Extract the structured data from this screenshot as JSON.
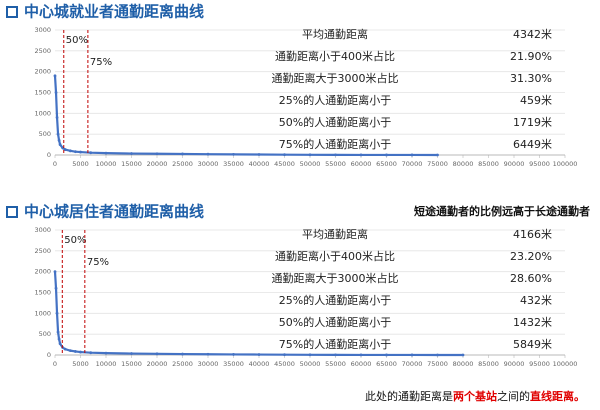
{
  "chart_data": [
    {
      "type": "line",
      "title": "中心城就业者通勤距离曲线",
      "color": "#4472c4",
      "marker_color": "#c00000",
      "x": [
        0,
        200,
        400,
        600,
        800,
        1000,
        1500,
        2000,
        3000,
        4000,
        5000,
        7000,
        10000,
        15000,
        20000,
        25000,
        30000,
        35000,
        40000,
        45000,
        50000,
        55000,
        60000,
        65000,
        70000,
        75000
      ],
      "values": [
        1900,
        1500,
        900,
        500,
        350,
        250,
        170,
        130,
        100,
        80,
        70,
        55,
        45,
        35,
        30,
        25,
        20,
        15,
        12,
        8,
        5,
        3,
        2,
        1,
        1,
        0
      ],
      "xlim": [
        0,
        100000
      ],
      "xticks": [
        0,
        5000,
        10000,
        15000,
        20000,
        25000,
        30000,
        35000,
        40000,
        45000,
        50000,
        55000,
        60000,
        65000,
        70000,
        75000,
        80000,
        85000,
        90000,
        95000,
        100000
      ],
      "ylim": [
        0,
        3000
      ],
      "yticks": [
        0,
        500,
        1000,
        1500,
        2000,
        2500,
        3000
      ],
      "grid": true,
      "markers": [
        {
          "label": "50%",
          "x": 1719
        },
        {
          "label": "75%",
          "x": 6449
        }
      ],
      "stats": [
        [
          "平均通勤距离",
          "4342米"
        ],
        [
          "通勤距离小于400米占比",
          "21.90%"
        ],
        [
          "通勤距离大于3000米占比",
          "31.30%"
        ],
        [
          "25%的人通勤距离小于",
          "459米"
        ],
        [
          "50%的人通勤距离小于",
          "1719米"
        ],
        [
          "75%的人通勤距离小于",
          "6449米"
        ]
      ]
    },
    {
      "type": "line",
      "title": "中心城居住者通勤距离曲线",
      "color": "#4472c4",
      "marker_color": "#c00000",
      "x": [
        0,
        200,
        400,
        600,
        800,
        1000,
        1500,
        2000,
        3000,
        4000,
        5000,
        7000,
        10000,
        15000,
        20000,
        25000,
        30000,
        35000,
        40000,
        45000,
        50000,
        55000,
        60000,
        65000,
        70000,
        75000,
        80000
      ],
      "values": [
        2000,
        1600,
        1000,
        550,
        380,
        270,
        180,
        140,
        105,
        85,
        70,
        55,
        45,
        35,
        28,
        22,
        18,
        14,
        11,
        8,
        5,
        3,
        2,
        1,
        1,
        0,
        0
      ],
      "xlim": [
        0,
        100000
      ],
      "xticks": [
        0,
        5000,
        10000,
        15000,
        20000,
        25000,
        30000,
        35000,
        40000,
        45000,
        50000,
        55000,
        60000,
        65000,
        70000,
        75000,
        80000,
        85000,
        90000,
        95000,
        100000
      ],
      "ylim": [
        0,
        3000
      ],
      "yticks": [
        0,
        500,
        1000,
        1500,
        2000,
        2500,
        3000
      ],
      "grid": true,
      "markers": [
        {
          "label": "50%",
          "x": 1432
        },
        {
          "label": "75%",
          "x": 5849
        }
      ],
      "stats": [
        [
          "平均通勤距离",
          "4166米"
        ],
        [
          "通勤距离小于400米占比",
          "23.20%"
        ],
        [
          "通勤距离大于3000米占比",
          "28.60%"
        ],
        [
          "25%的人通勤距离小于",
          "432米"
        ],
        [
          "50%的人通勤距离小于",
          "1432米"
        ],
        [
          "75%的人通勤距离小于",
          "5849米"
        ]
      ],
      "highlight_row": 5,
      "highlight_color": "#e00000"
    }
  ],
  "headline": "短途通勤者的比例远高于长途通勤者",
  "footnote": [
    {
      "text": "此处的通勤距离是",
      "emphasis": false
    },
    {
      "text": "两个基站",
      "emphasis": true
    },
    {
      "text": "之间的",
      "emphasis": false
    },
    {
      "text": "直线距离。",
      "emphasis": true
    }
  ]
}
